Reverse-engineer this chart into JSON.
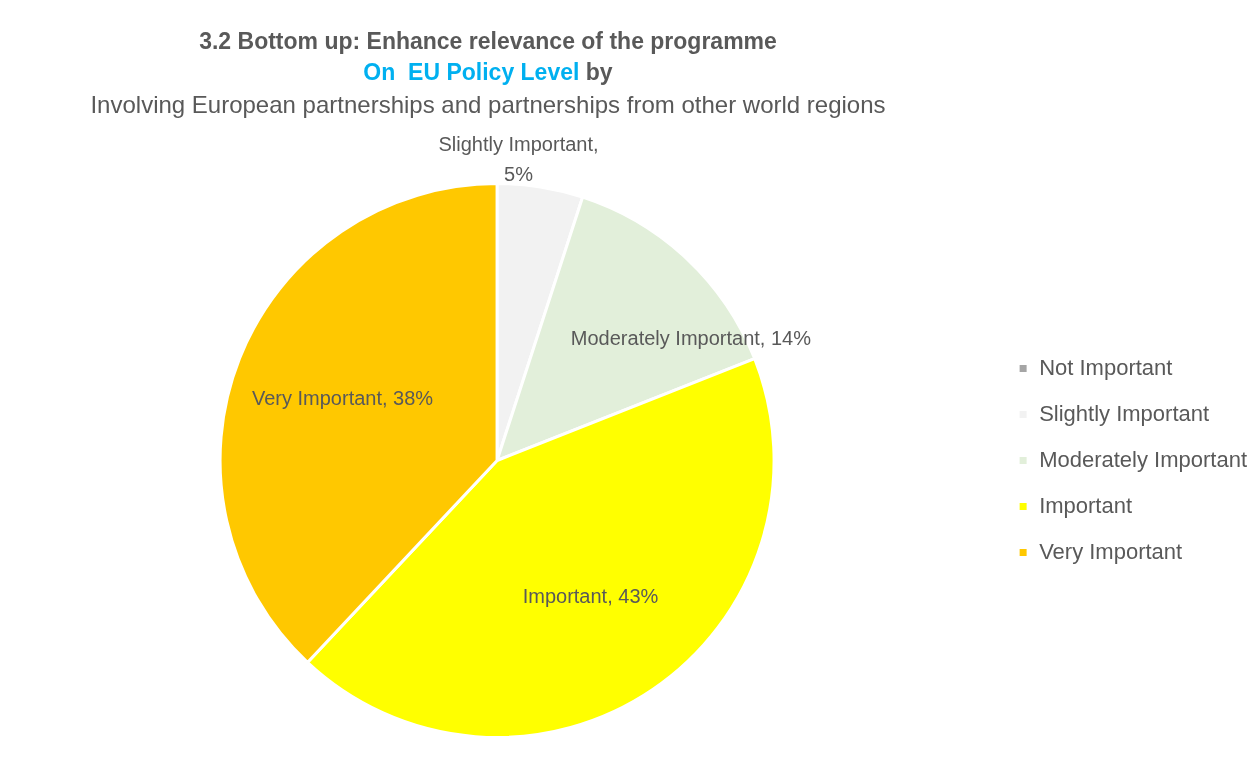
{
  "chart_data": {
    "type": "pie",
    "title": "3.2 Bottom up: Enhance relevance of the programme",
    "subtitle": "On  EU Policy Level by",
    "annotations": [
      "Involving European partnerships and partnerships from other world regions"
    ],
    "categories": [
      "Not Important",
      "Slightly Important",
      "Moderately Important",
      "Important",
      "Very Important"
    ],
    "values": [
      0,
      5,
      14,
      43,
      38
    ],
    "colors": [
      "#a5a5a5",
      "#f2f2f2",
      "#e2efda",
      "#ffff00",
      "#ffc800"
    ],
    "value_labels": [
      null,
      "Slightly Important, 5%",
      "Moderately Important, 14%",
      "Important, 43%",
      "Very Important, 38%"
    ],
    "legend": "right"
  }
}
